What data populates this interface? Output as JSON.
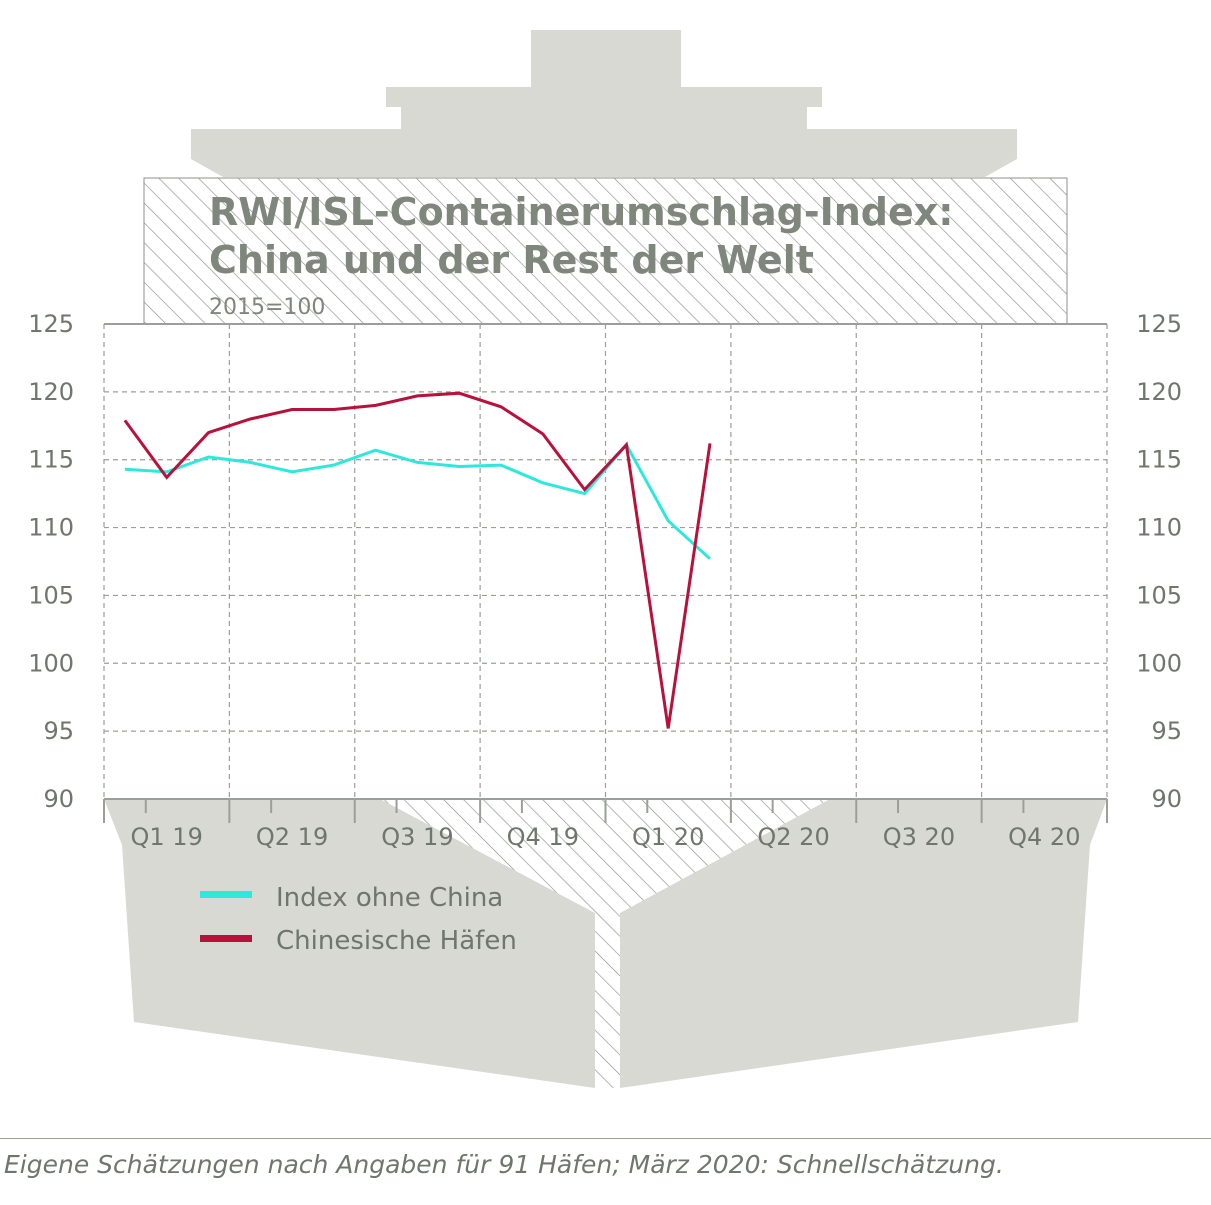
{
  "chart_data": {
    "type": "line",
    "title": "RWI/ISL-Containerumschlag-Index:",
    "title_line2": "China und der Rest der Welt",
    "subtitle": "2015=100",
    "x_periods": [
      "Q1 19",
      "Q2 19",
      "Q3 19",
      "Q4 19",
      "Q1 20",
      "Q2 20",
      "Q3 20",
      "Q4 20"
    ],
    "x_months": [
      "2019-01",
      "2019-02",
      "2019-03",
      "2019-04",
      "2019-05",
      "2019-06",
      "2019-07",
      "2019-08",
      "2019-09",
      "2019-10",
      "2019-11",
      "2019-12",
      "2020-01",
      "2020-02",
      "2020-03"
    ],
    "ylim": [
      90,
      125
    ],
    "y_ticks": [
      "90",
      "95",
      "100",
      "105",
      "110",
      "115",
      "120",
      "125"
    ],
    "grid": true,
    "legend_position": "bottom-left",
    "series": [
      {
        "name": "Index ohne China",
        "color": "#2de8dc",
        "values": [
          114.3,
          114.1,
          115.2,
          114.8,
          114.1,
          114.6,
          115.7,
          114.8,
          114.5,
          114.6,
          113.3,
          112.5,
          116.1,
          110.5,
          107.7
        ]
      },
      {
        "name": "Chinesische Häfen",
        "color": "#b8113b",
        "values": [
          117.9,
          113.7,
          117.0,
          118.0,
          118.7,
          118.7,
          119.0,
          119.7,
          119.9,
          118.9,
          116.9,
          112.8,
          116.1,
          95.2,
          116.2
        ]
      }
    ]
  },
  "footnote": "Eigene Schätzungen nach Angaben für 91 Häfen; März 2020: Schnellschätzung.",
  "colors": {
    "ship_gray": "#d9d9d4",
    "axis_gray": "#9aa097",
    "text_gray": "#6f766c",
    "title_gray": "#7f867b"
  }
}
